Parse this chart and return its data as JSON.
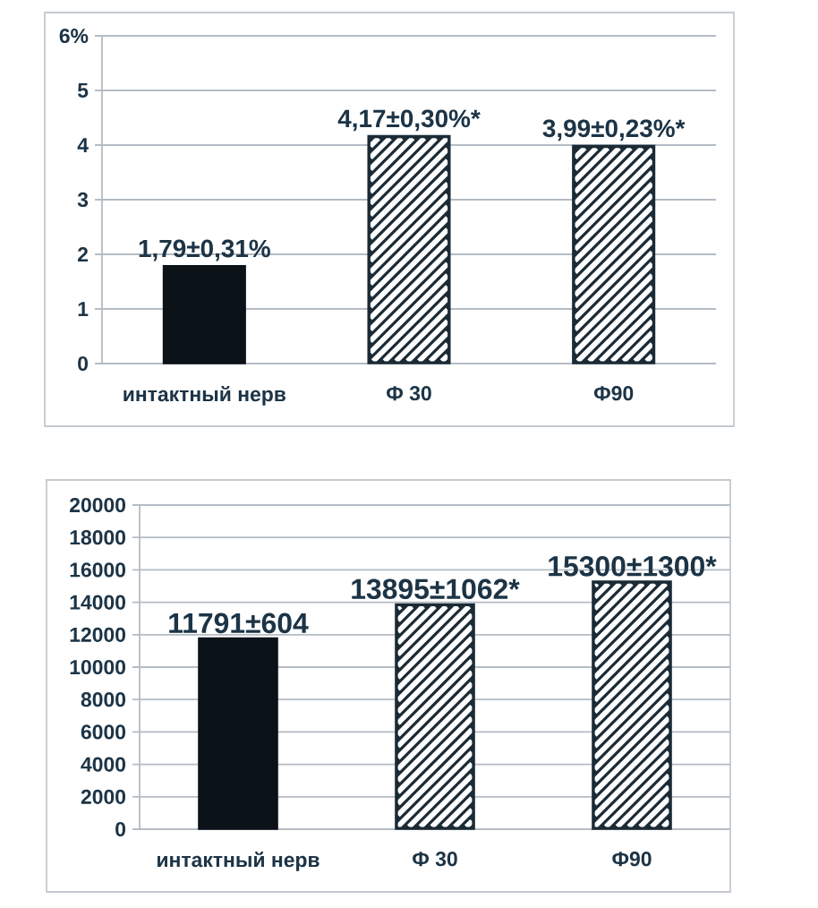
{
  "chart_data": [
    {
      "type": "bar",
      "categories": [
        "интактный нерв",
        "Ф 30",
        "Ф90"
      ],
      "series": [
        {
          "color": "#0b1218",
          "values": [
            1.79,
            null,
            null
          ],
          "value_labels": [
            "1,79±0,31%",
            null,
            null
          ]
        },
        {
          "color": "#1b2b36",
          "values": [
            null,
            4.17,
            3.99
          ],
          "value_labels": [
            null,
            "4,17±0,30%*",
            "3,99±0,23%*"
          ]
        }
      ],
      "ylim": [
        0,
        6
      ],
      "yticks": [
        0,
        1,
        2,
        3,
        4,
        5,
        {
          "value": 6,
          "label": "6%"
        }
      ],
      "grid": "y"
    },
    {
      "type": "bar",
      "categories": [
        "интактный нерв",
        "Ф 30",
        "Ф90"
      ],
      "series": [
        {
          "color": "#0b1218",
          "values": [
            11791,
            null,
            null
          ],
          "value_labels": [
            "11791±604",
            null,
            null
          ]
        },
        {
          "color": "#1b2b36",
          "values": [
            null,
            13895,
            15300
          ],
          "value_labels": [
            null,
            "13895±1062*",
            "15300±1300*"
          ]
        }
      ],
      "ylim": [
        0,
        20000
      ],
      "yticks": [
        0,
        2000,
        4000,
        6000,
        8000,
        10000,
        12000,
        14000,
        16000,
        18000,
        20000
      ],
      "grid": "y"
    }
  ]
}
